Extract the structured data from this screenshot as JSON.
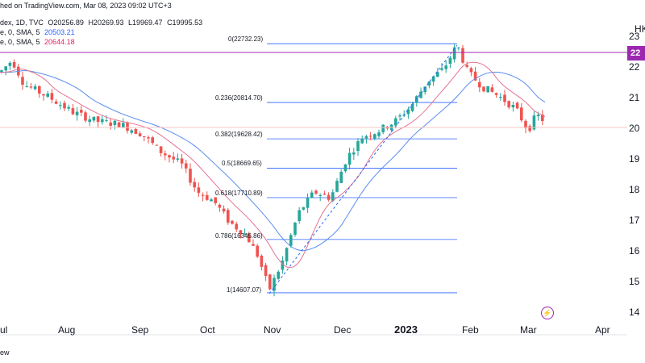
{
  "header": {
    "publisher": "hed on TradingView.com, Mar 08, 2023 09:02 UTC+3",
    "index_line": {
      "label": "dex, 1D, TVC",
      "open": "O20256.89",
      "high": "H20269.93",
      "low": "L19969.47",
      "close": "C19995.53"
    },
    "sma_blue": {
      "label": "e, 0, SMA, 5",
      "value": "20503.21",
      "color": "#2962ff"
    },
    "sma_pink": {
      "label": "e, 0, SMA, 5",
      "value": "20644.18",
      "color": "#e91e63"
    }
  },
  "price_axis": {
    "symbol": "HK",
    "ticks": [
      "23",
      "22",
      "21",
      "20",
      "19",
      "18",
      "17",
      "16",
      "15",
      "14"
    ],
    "badge": "22",
    "badge_color": "#9c27b0"
  },
  "time_axis": [
    "ul",
    "Aug",
    "Sep",
    "Oct",
    "Nov",
    "Dec",
    "2023",
    "Feb",
    "Mar",
    "Apr"
  ],
  "fib_labels": [
    "0(22732.23)",
    "0.236(20814.70)",
    "0.382(19628.42)",
    "0.5(18669.65)",
    "0.618(17710.89)",
    "0.786(16345.86)",
    "1(14607.07)"
  ],
  "footer": "ew",
  "colors": {
    "up": "#26a69a",
    "down": "#ef5350",
    "fib": "#2962ff",
    "sma_blue": "#5b8def",
    "sma_pink": "#e57390"
  },
  "chart_data": {
    "type": "candlestick",
    "fib_levels": [
      {
        "ratio": 0,
        "price": 22732.23
      },
      {
        "ratio": 0.236,
        "price": 20814.7
      },
      {
        "ratio": 0.382,
        "price": 19628.42
      },
      {
        "ratio": 0.5,
        "price": 18669.65
      },
      {
        "ratio": 0.618,
        "price": 17710.89
      },
      {
        "ratio": 0.786,
        "price": 16345.86
      },
      {
        "ratio": 1,
        "price": 14607.07
      }
    ],
    "series": [
      {
        "name": "SMA",
        "values": "approx"
      }
    ]
  }
}
